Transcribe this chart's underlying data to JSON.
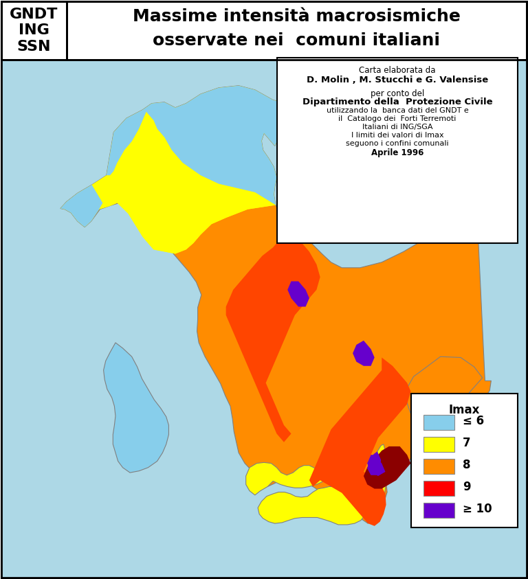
{
  "title_left": "GNDT\nING\nSSN",
  "title_main_line1": "Massime intensità macrosismiche",
  "title_main_line2": "osservate nei  comuni italiani",
  "info_box_lines": [
    {
      "text": "Carta elaborata da",
      "bold": false,
      "size": 9
    },
    {
      "text": "D. Molin , M. Stucchi e G. Valensise",
      "bold": true,
      "size": 10
    },
    {
      "text": "",
      "bold": false,
      "size": 6
    },
    {
      "text": "per conto del",
      "bold": false,
      "size": 9
    },
    {
      "text": "Dipartimento della  Protezione Civile",
      "bold": true,
      "size": 10
    },
    {
      "text": "utilizzando la  banca dati del GNDT e",
      "bold": false,
      "size": 8.5
    },
    {
      "text": "il  Catalogo dei  Forti Terremoti",
      "bold": false,
      "size": 8.5
    },
    {
      "text": "Italiani di ING/SGA",
      "bold": false,
      "size": 8.5
    },
    {
      "text": "I limiti dei valori di Imax",
      "bold": false,
      "size": 8.5
    },
    {
      "text": "seguono i confini comunali",
      "bold": false,
      "size": 8.5
    },
    {
      "text": "Aprile 1996",
      "bold": true,
      "size": 9
    }
  ],
  "legend_title": "Imax",
  "legend_entries": [
    {
      "label": "≤ 6",
      "color": "#87CEEB"
    },
    {
      "label": "7",
      "color": "#FFFF00"
    },
    {
      "label": "8",
      "color": "#FF8C00"
    },
    {
      "label": "9",
      "color": "#FF0000"
    },
    {
      "label": "≥ 10",
      "color": "#6600CC"
    }
  ],
  "sea_color": "#ADD8E6",
  "background_color": "#ffffff",
  "map_border_color": "#000000",
  "header_border_color": "#000000"
}
